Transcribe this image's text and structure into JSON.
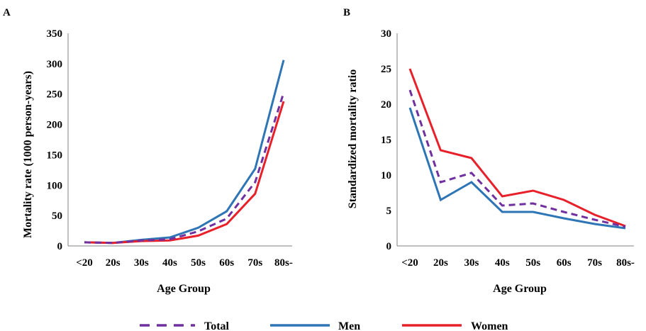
{
  "colors": {
    "total": "#7030a0",
    "men": "#2e75b6",
    "women": "#e8202a",
    "axis": "#808080"
  },
  "legend": {
    "items": [
      {
        "key": "total",
        "label": "Total",
        "style": "dashed"
      },
      {
        "key": "men",
        "label": "Men",
        "style": "solid"
      },
      {
        "key": "women",
        "label": "Women",
        "style": "solid"
      }
    ]
  },
  "chart_data": [
    {
      "panel": "A",
      "type": "line",
      "categories": [
        "<20",
        "20s",
        "30s",
        "40s",
        "50s",
        "60s",
        "70s",
        "80s-"
      ],
      "ylabel": "Mortality rate (1000 person-years)",
      "xlabel": "Age Group",
      "ylim": [
        0,
        350
      ],
      "yticks": [
        0,
        50,
        100,
        150,
        200,
        250,
        300,
        350
      ],
      "grid": false,
      "legend_position": "bottom",
      "series": [
        {
          "key": "total",
          "name": "Total",
          "values": [
            6,
            5,
            9,
            11,
            24,
            45,
            105,
            252
          ]
        },
        {
          "key": "men",
          "name": "Men",
          "values": [
            6,
            5,
            10,
            14,
            30,
            57,
            127,
            306
          ]
        },
        {
          "key": "women",
          "name": "Women",
          "values": [
            6,
            5,
            8,
            9,
            17,
            36,
            86,
            238
          ]
        }
      ]
    },
    {
      "panel": "B",
      "type": "line",
      "categories": [
        "<20",
        "20s",
        "30s",
        "40s",
        "50s",
        "60s",
        "70s",
        "80s-"
      ],
      "ylabel": "Standardized mortality ratio",
      "xlabel": "Age Group",
      "ylim": [
        0,
        30
      ],
      "yticks": [
        0,
        5,
        10,
        15,
        20,
        25,
        30
      ],
      "grid": false,
      "legend_position": "bottom",
      "series": [
        {
          "key": "total",
          "name": "Total",
          "values": [
            22,
            9,
            10.3,
            5.7,
            6,
            4.8,
            3.7,
            2.7
          ]
        },
        {
          "key": "men",
          "name": "Men",
          "values": [
            19.5,
            6.5,
            9,
            4.8,
            4.8,
            3.9,
            3.1,
            2.5
          ]
        },
        {
          "key": "women",
          "name": "Women",
          "values": [
            25,
            13.5,
            12.4,
            7,
            7.8,
            6.5,
            4.4,
            2.8
          ]
        }
      ]
    }
  ]
}
